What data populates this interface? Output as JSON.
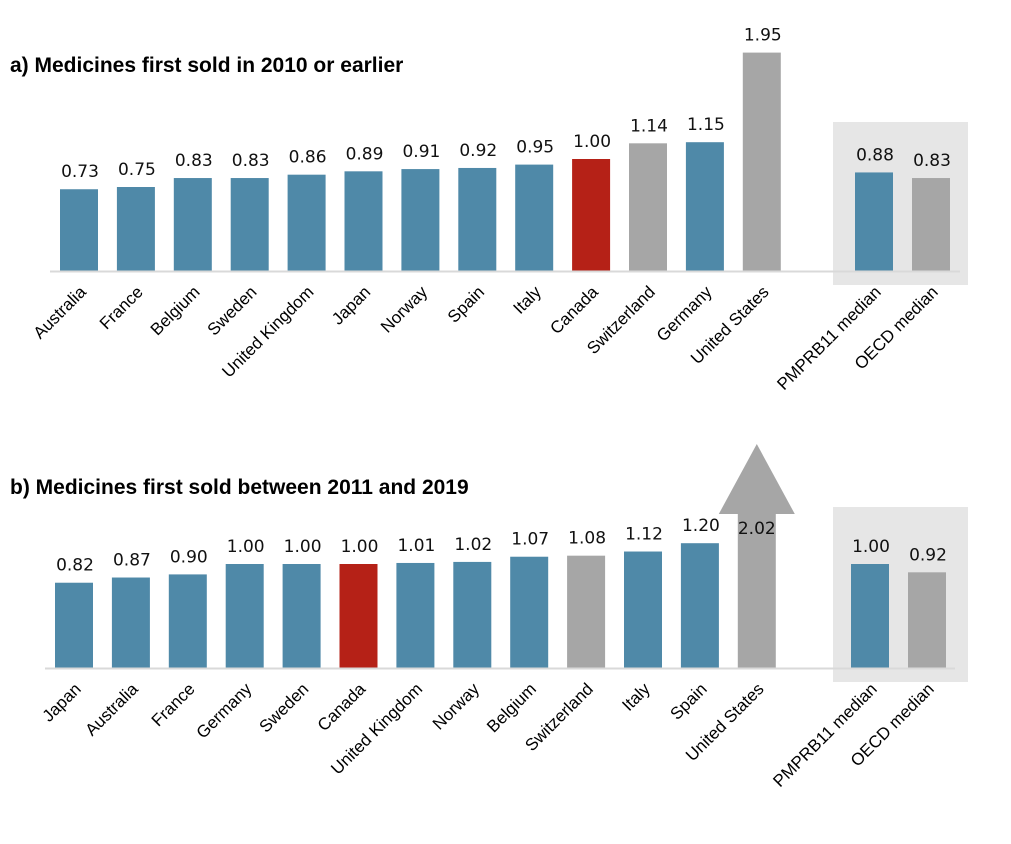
{
  "colors": {
    "country": "#4f89a8",
    "canada": "#b52117",
    "highlight_gray": "#a6a6a6",
    "median_box": "#e6e6e6",
    "axis": "#d9d9d9"
  },
  "chart_data": [
    {
      "type": "bar",
      "title": "a) Medicines first sold in 2010 or earlier",
      "xlabel": "",
      "ylabel": "",
      "ylim": [
        0,
        2.0
      ],
      "grid": false,
      "categories": [
        "Australia",
        "France",
        "Belgium",
        "Sweden",
        "United Kingdom",
        "Japan",
        "Norway",
        "Spain",
        "Italy",
        "Canada",
        "Switzerland",
        "Germany",
        "United States"
      ],
      "values": [
        0.73,
        0.75,
        0.83,
        0.83,
        0.86,
        0.89,
        0.91,
        0.92,
        0.95,
        1.0,
        1.14,
        1.15,
        1.95
      ],
      "labels": [
        "0.73",
        "0.75",
        "0.83",
        "0.83",
        "0.86",
        "0.89",
        "0.91",
        "0.92",
        "0.95",
        "1.00",
        "1.14",
        "1.15",
        "1.95"
      ],
      "bar_colors": [
        "country",
        "country",
        "country",
        "country",
        "country",
        "country",
        "country",
        "country",
        "country",
        "canada",
        "highlight_gray",
        "country",
        "highlight_gray"
      ],
      "truncated": [],
      "medians": {
        "categories": [
          "PMPRB11 median",
          "OECD median"
        ],
        "values": [
          0.88,
          0.83
        ],
        "labels": [
          "0.88",
          "0.83"
        ],
        "bar_colors": [
          "country",
          "highlight_gray"
        ]
      }
    },
    {
      "type": "bar",
      "title": "b) Medicines first sold between 2011 and 2019",
      "xlabel": "",
      "ylabel": "",
      "ylim": [
        0,
        2.1
      ],
      "grid": false,
      "categories": [
        "Japan",
        "Australia",
        "France",
        "Germany",
        "Sweden",
        "Canada",
        "United Kingdom",
        "Norway",
        "Belgium",
        "Switzerland",
        "Italy",
        "Spain",
        "United States"
      ],
      "values": [
        0.82,
        0.87,
        0.9,
        1.0,
        1.0,
        1.0,
        1.01,
        1.02,
        1.07,
        1.08,
        1.12,
        1.2,
        2.02
      ],
      "labels": [
        "0.82",
        "0.87",
        "0.90",
        "1.00",
        "1.00",
        "1.00",
        "1.01",
        "1.02",
        "1.07",
        "1.08",
        "1.12",
        "1.20",
        "2.02"
      ],
      "bar_colors": [
        "country",
        "country",
        "country",
        "country",
        "country",
        "canada",
        "country",
        "country",
        "country",
        "highlight_gray",
        "country",
        "country",
        "highlight_gray"
      ],
      "truncated": [
        "United States"
      ],
      "medians": {
        "categories": [
          "PMPRB11 median",
          "OECD median"
        ],
        "values": [
          1.0,
          0.92
        ],
        "labels": [
          "1.00",
          "0.92"
        ],
        "bar_colors": [
          "country",
          "highlight_gray"
        ]
      }
    }
  ]
}
